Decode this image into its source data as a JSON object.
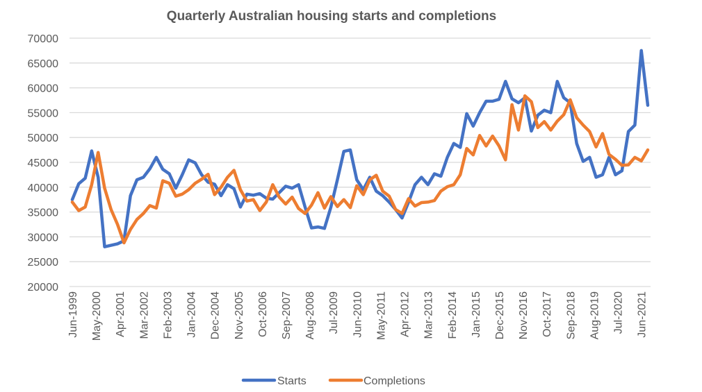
{
  "chart_data": {
    "type": "line",
    "title": "Quarterly Australian housing starts and completions",
    "xlabel": "",
    "ylabel": "",
    "ylim": [
      20000,
      70000
    ],
    "yticks": [
      20000,
      25000,
      30000,
      35000,
      40000,
      45000,
      50000,
      55000,
      60000,
      65000,
      70000
    ],
    "grid": true,
    "legend_position": "bottom",
    "xtick_labels": [
      "Jun-1999",
      "May-2000",
      "Apr-2001",
      "Mar-2002",
      "Feb-2003",
      "Jan-2004",
      "Dec-2004",
      "Nov-2005",
      "Oct-2006",
      "Sep-2007",
      "Aug-2008",
      "Jul-2009",
      "Jun-2010",
      "May-2011",
      "Apr-2012",
      "Mar-2013",
      "Feb-2014",
      "Jan-2015",
      "Dec-2015",
      "Nov-2016",
      "Oct-2017",
      "Sep-2018",
      "Aug-2019",
      "Jul-2020",
      "Jun-2021"
    ],
    "x": [
      "Jun-1999",
      "Sep-1999",
      "Dec-1999",
      "Mar-2000",
      "Jun-2000",
      "Sep-2000",
      "Dec-2000",
      "Mar-2001",
      "Jun-2001",
      "Sep-2001",
      "Dec-2001",
      "Mar-2002",
      "Jun-2002",
      "Sep-2002",
      "Dec-2002",
      "Mar-2003",
      "Jun-2003",
      "Sep-2003",
      "Dec-2003",
      "Mar-2004",
      "Jun-2004",
      "Sep-2004",
      "Dec-2004",
      "Mar-2005",
      "Jun-2005",
      "Sep-2005",
      "Dec-2005",
      "Mar-2006",
      "Jun-2006",
      "Sep-2006",
      "Dec-2006",
      "Mar-2007",
      "Jun-2007",
      "Sep-2007",
      "Dec-2007",
      "Mar-2008",
      "Jun-2008",
      "Sep-2008",
      "Dec-2008",
      "Mar-2009",
      "Jun-2009",
      "Sep-2009",
      "Dec-2009",
      "Mar-2010",
      "Jun-2010",
      "Sep-2010",
      "Dec-2010",
      "Mar-2011",
      "Jun-2011",
      "Sep-2011",
      "Dec-2011",
      "Mar-2012",
      "Jun-2012",
      "Sep-2012",
      "Dec-2012",
      "Mar-2013",
      "Jun-2013",
      "Sep-2013",
      "Dec-2013",
      "Mar-2014",
      "Jun-2014",
      "Sep-2014",
      "Dec-2014",
      "Mar-2015",
      "Jun-2015",
      "Sep-2015",
      "Dec-2015",
      "Mar-2016",
      "Jun-2016",
      "Sep-2016",
      "Dec-2016",
      "Mar-2017",
      "Jun-2017",
      "Sep-2017",
      "Dec-2017",
      "Mar-2018",
      "Jun-2018",
      "Sep-2018",
      "Dec-2018",
      "Mar-2019",
      "Jun-2019",
      "Sep-2019",
      "Dec-2019",
      "Mar-2020",
      "Jun-2020",
      "Sep-2020",
      "Dec-2020",
      "Mar-2021",
      "Jun-2021",
      "Sep-2021"
    ],
    "series": [
      {
        "name": "Starts",
        "color": "#4472C4",
        "values": [
          37500,
          40700,
          41800,
          47300,
          42000,
          28000,
          28300,
          28600,
          29200,
          38300,
          41500,
          42000,
          43700,
          46000,
          43600,
          42700,
          39800,
          42500,
          45500,
          44900,
          42500,
          41000,
          40600,
          38300,
          40500,
          39700,
          36000,
          38600,
          38400,
          38700,
          37800,
          37600,
          38900,
          40200,
          39800,
          40500,
          36000,
          31800,
          32000,
          31700,
          36000,
          41500,
          47200,
          47500,
          41500,
          39500,
          42000,
          39200,
          38300,
          37000,
          35500,
          33800,
          37000,
          40500,
          42000,
          40500,
          42700,
          42200,
          46000,
          48800,
          48000,
          54800,
          52300,
          55000,
          57300,
          57300,
          57700,
          61300,
          57800,
          57000,
          58000,
          51300,
          54500,
          55500,
          55000,
          61300,
          58000,
          57000,
          48800,
          45200,
          46000,
          42000,
          42500,
          46000,
          42500,
          43300,
          51200,
          52500,
          67500,
          56500
        ]
      },
      {
        "name": "Completions",
        "color": "#ED7D31",
        "values": [
          37000,
          35300,
          36000,
          40500,
          47000,
          39800,
          35500,
          32500,
          28800,
          31500,
          33500,
          34700,
          36300,
          35800,
          41300,
          40800,
          38200,
          38600,
          39500,
          40800,
          41600,
          42600,
          38500,
          40000,
          42000,
          43400,
          39500,
          37200,
          37500,
          35300,
          37000,
          40500,
          38000,
          36600,
          38000,
          35700,
          34700,
          36400,
          38900,
          35800,
          38100,
          36100,
          37500,
          35900,
          40300,
          38500,
          41500,
          42400,
          39200,
          38200,
          35500,
          34700,
          37700,
          36200,
          36900,
          37000,
          37300,
          39200,
          40100,
          40500,
          42500,
          47800,
          46500,
          50400,
          48300,
          50300,
          48300,
          45500,
          56600,
          51500,
          58400,
          57200,
          52000,
          53200,
          51500,
          53300,
          54600,
          57600,
          54000,
          52500,
          51200,
          48100,
          50800,
          46600,
          45600,
          44400,
          44500,
          46000,
          45300,
          47500
        ]
      }
    ]
  }
}
